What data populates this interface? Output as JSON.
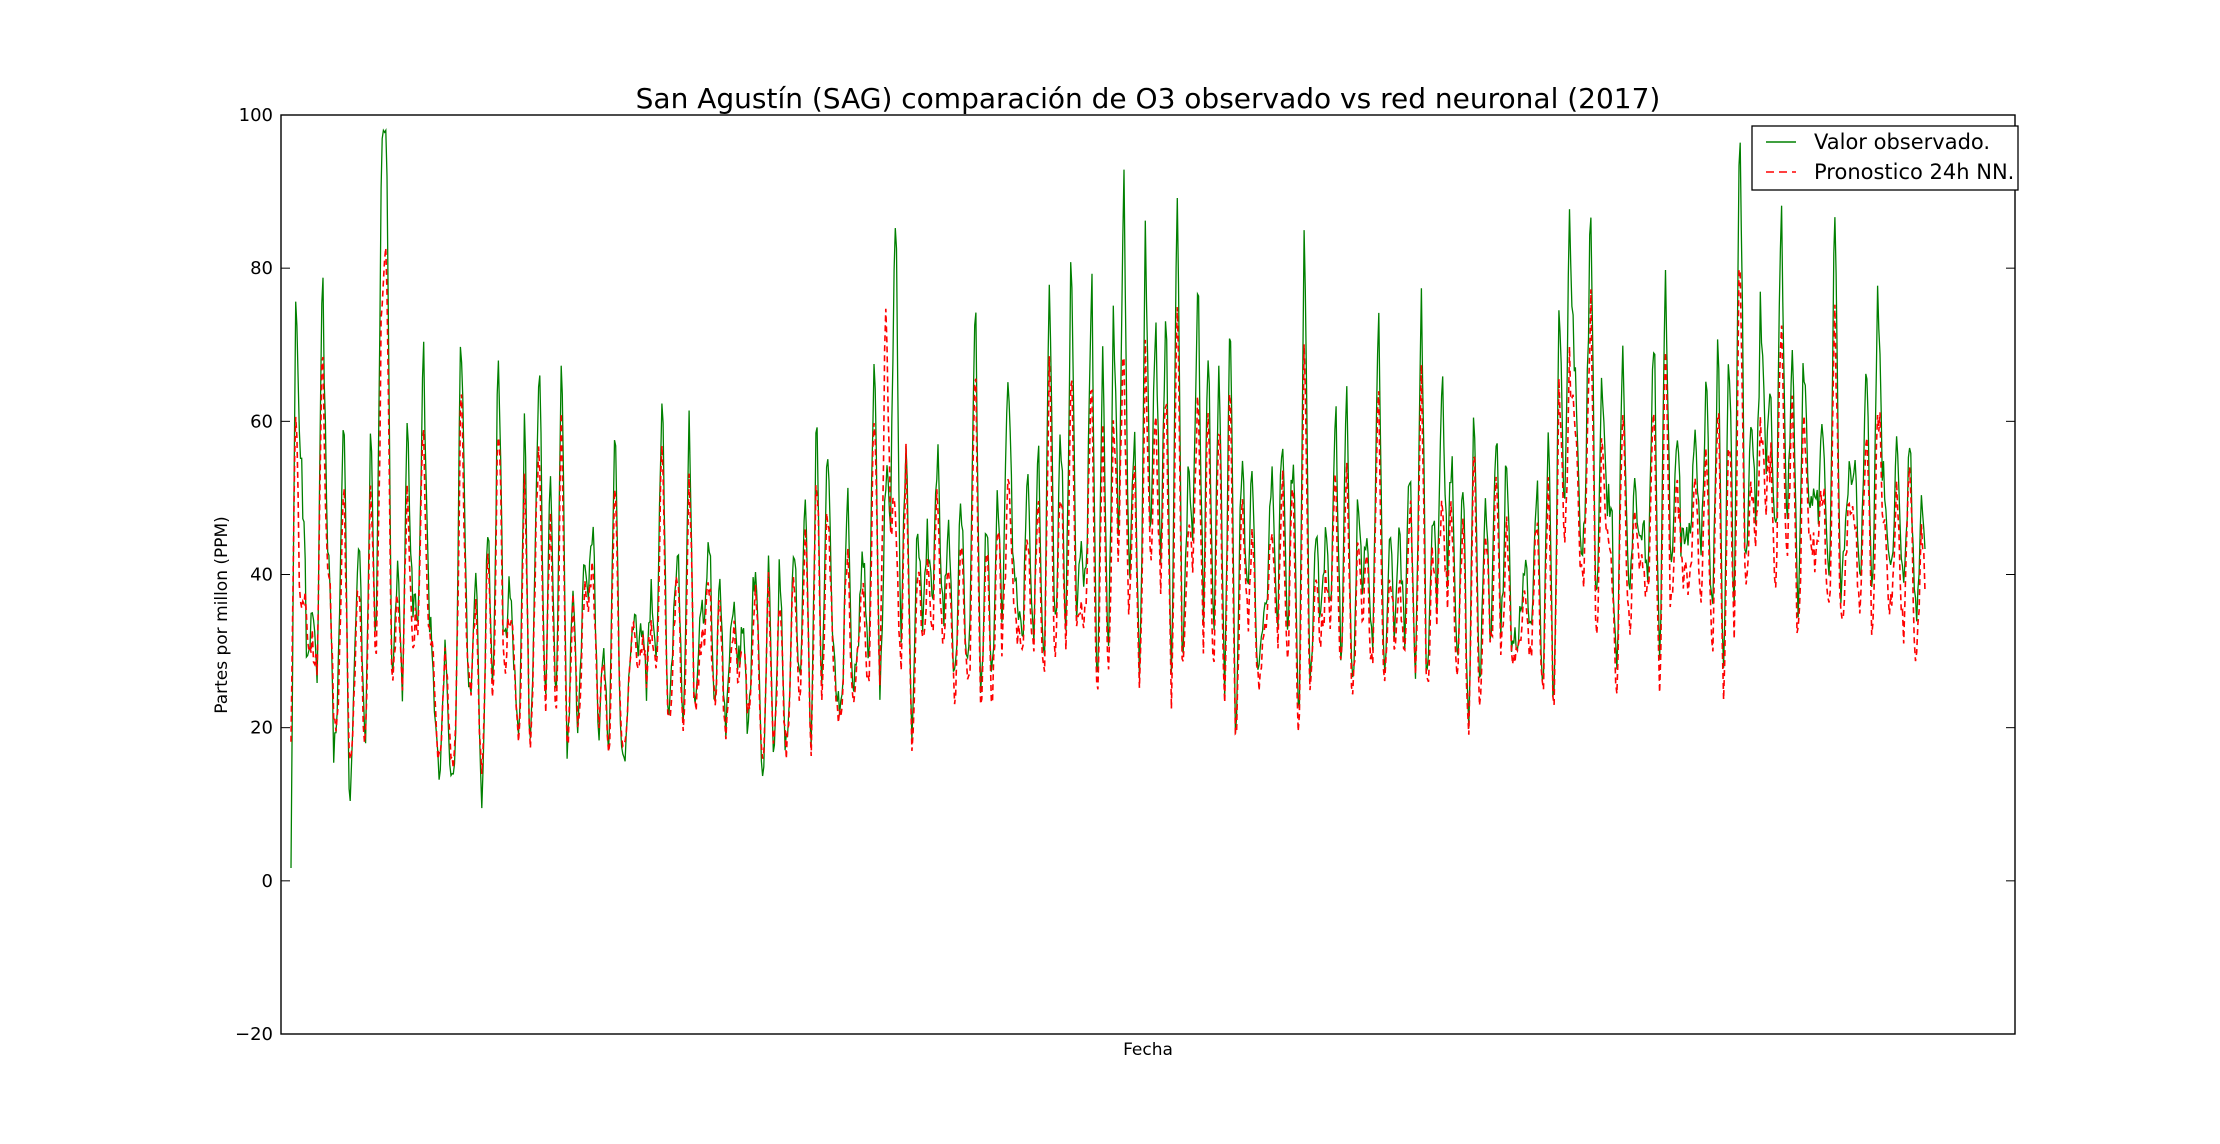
{
  "chart_data": {
    "type": "line",
    "title": "San Agustín (SAG) comparación de O3 observado vs red neuronal (2017)",
    "xlabel": "Fecha",
    "ylabel": "Partes por millon (PPM)",
    "ylim": [
      -20,
      100
    ],
    "yticks": [
      -20,
      0,
      20,
      40,
      60,
      80,
      100
    ],
    "ytick_labels": [
      "−20",
      "0",
      "20",
      "40",
      "60",
      "80",
      "100"
    ],
    "x_ticks_shown": false,
    "grid": false,
    "legend_position": "top-right",
    "n_points": 1380,
    "series": [
      {
        "name": "Valor observado.",
        "color": "#008000",
        "style": "solid",
        "generated": true,
        "base": [
          3,
          76,
          60,
          20,
          45,
          18,
          90,
          42,
          15,
          35,
          55,
          12,
          28,
          40,
          22,
          50,
          30,
          98,
          88,
          30,
          44,
          18,
          70,
          35,
          27,
          80,
          33,
          20,
          18,
          28,
          12,
          22,
          65,
          41,
          25,
          35,
          12,
          40,
          28,
          70,
          30,
          45,
          23,
          25,
          52,
          20,
          40,
          65,
          24,
          48,
          28,
          60,
          22,
          35,
          18,
          45,
          30,
          56,
          15,
          30,
          22,
          52,
          25,
          18,
          24,
          40,
          35,
          20,
          45,
          30,
          56,
          28,
          30,
          38,
          25,
          55,
          20,
          40,
          28,
          50,
          22,
          35,
          25,
          28,
          38,
          30,
          20,
          40,
          30,
          15,
          36,
          20,
          35,
          22,
          25,
          40,
          30,
          45,
          22,
          54,
          25,
          60,
          28,
          30,
          22,
          48,
          30,
          26,
          45,
          35,
          61,
          28,
          54,
          40,
          97,
          30,
          52,
          22,
          45,
          28,
          56,
          30,
          55,
          40,
          38,
          30,
          45,
          32,
          38,
          68,
          30,
          42,
          28,
          50,
          30,
          74,
          36,
          45,
          25,
          60,
          28,
          56,
          30,
          72,
          40,
          50,
          35,
          86,
          30,
          52,
          35,
          76,
          28,
          60,
          30,
          78,
          35,
          98,
          40,
          50,
          30,
          86,
          35,
          85,
          40,
          68,
          30,
          87,
          28,
          60,
          36,
          88,
          30,
          70,
          35,
          60,
          30,
          68,
          22,
          48,
          40,
          56,
          25,
          40,
          30,
          65,
          28,
          62,
          35,
          50,
          25,
          80,
          30,
          45,
          28,
          55,
          30,
          60,
          35,
          56,
          25,
          55,
          30,
          50,
          35,
          65,
          30,
          48,
          25,
          56,
          30,
          50,
          35,
          71,
          28,
          52,
          30,
          78,
          35,
          56,
          30,
          48,
          25,
          55,
          30,
          45,
          35,
          60,
          30,
          62,
          25,
          40,
          30,
          45,
          35,
          47,
          30,
          50,
          25,
          76,
          40,
          98,
          60,
          45,
          58,
          80,
          35,
          72,
          40,
          52,
          30,
          62,
          45,
          50,
          38,
          55,
          40,
          66,
          35,
          72,
          45,
          60,
          38,
          55,
          40,
          62,
          45,
          58,
          40,
          62,
          35,
          60,
          40,
          98,
          45,
          60,
          40,
          86,
          45,
          72,
          40,
          88,
          50,
          60,
          42,
          65,
          45,
          62,
          40,
          58,
          45,
          80,
          40,
          55,
          42,
          58,
          45,
          60,
          40,
          79,
          45,
          55,
          40,
          52,
          45,
          48,
          40,
          47,
          38
        ],
        "scale": [
          5,
          10,
          10,
          8,
          10,
          8,
          12,
          10,
          5,
          8,
          8,
          4,
          6,
          8,
          6,
          10,
          6,
          10,
          10,
          6,
          8,
          5,
          10,
          8,
          6,
          10,
          8,
          6,
          5,
          6,
          3,
          6,
          10,
          8,
          6,
          8,
          3,
          8,
          6,
          10,
          6,
          8,
          6,
          6,
          10,
          6,
          8,
          10,
          6,
          8,
          6,
          10,
          6,
          8,
          5,
          8,
          6,
          10,
          4,
          6,
          6,
          10,
          6,
          4,
          6,
          8,
          8,
          5,
          8,
          6,
          10,
          6,
          6,
          8,
          6,
          10,
          5,
          8,
          6,
          10,
          6,
          8,
          6,
          6,
          8,
          6,
          5,
          8,
          6,
          4,
          8,
          5,
          8,
          6,
          6,
          8,
          6,
          8,
          6,
          10,
          6,
          10,
          6,
          6,
          6,
          8,
          6,
          6,
          8,
          8,
          10,
          6,
          10,
          8,
          10,
          6,
          10,
          6,
          8,
          6,
          10,
          6,
          10,
          8,
          8,
          6,
          8,
          8,
          8,
          10,
          6,
          8,
          6,
          10,
          6,
          10,
          8,
          8,
          6,
          10,
          6,
          10,
          6,
          10,
          8,
          10,
          8,
          10,
          6,
          10,
          8,
          10,
          6,
          10,
          6,
          10,
          8,
          10,
          8,
          10,
          6,
          10,
          8,
          10,
          8,
          10,
          6,
          10,
          6,
          10,
          8,
          10,
          6,
          10,
          8,
          10,
          6,
          10,
          6,
          10,
          8,
          10,
          6,
          8,
          6,
          10,
          6,
          10,
          8,
          10,
          6,
          10,
          6,
          8,
          6,
          10,
          6,
          10,
          8,
          10,
          6,
          10,
          6,
          10,
          8,
          10,
          6,
          8,
          6,
          10,
          6,
          10,
          8,
          10,
          6,
          10,
          6,
          10,
          8,
          10,
          6,
          8,
          6,
          10,
          6,
          8,
          8,
          10,
          6,
          10,
          6,
          8,
          6,
          8,
          8,
          8,
          6,
          10,
          6,
          10,
          8,
          10,
          10,
          8,
          10,
          10,
          6,
          10,
          8,
          10,
          6,
          10,
          8,
          10,
          8,
          10,
          8,
          10,
          8,
          10,
          10,
          10,
          8,
          10,
          8,
          10,
          10,
          10,
          8,
          10,
          8,
          10,
          8,
          10,
          8,
          10,
          10,
          10,
          8,
          10,
          10,
          10,
          8,
          10,
          10,
          10,
          8,
          10,
          10,
          10,
          8,
          10,
          8,
          10,
          10,
          10,
          8,
          10,
          8,
          10,
          10,
          10,
          8,
          10,
          8,
          10,
          8,
          10,
          8,
          10,
          8
        ]
      },
      {
        "name": "Pronostico 24h NN.",
        "color": "#ff0000",
        "style": "dashed",
        "generated": true,
        "base": [
          18,
          60,
          40,
          25,
          40,
          22,
          78,
          38,
          20,
          30,
          45,
          18,
          25,
          35,
          22,
          45,
          28,
          78,
          72,
          30,
          40,
          20,
          60,
          30,
          28,
          70,
          30,
          22,
          20,
          26,
          16,
          22,
          55,
          38,
          26,
          30,
          16,
          35,
          26,
          60,
          28,
          40,
          24,
          24,
          45,
          22,
          36,
          55,
          24,
          42,
          26,
          52,
          22,
          32,
          20,
          40,
          28,
          50,
          18,
          28,
          22,
          45,
          24,
          20,
          24,
          36,
          32,
          22,
          40,
          28,
          50,
          26,
          28,
          34,
          24,
          48,
          22,
          36,
          26,
          44,
          22,
          32,
          24,
          26,
          34,
          28,
          22,
          36,
          28,
          18,
          32,
          22,
          32,
          22,
          24,
          36,
          28,
          40,
          22,
          48,
          24,
          52,
          26,
          28,
          22,
          42,
          28,
          25,
          40,
          32,
          55,
          28,
          80,
          38,
          55,
          28,
          48,
          22,
          40,
          26,
          50,
          28,
          50,
          36,
          35,
          28,
          40,
          30,
          35,
          58,
          28,
          38,
          26,
          45,
          28,
          60,
          32,
          40,
          24,
          52,
          26,
          50,
          28,
          60,
          36,
          45,
          32,
          70,
          28,
          46,
          32,
          64,
          26,
          52,
          28,
          64,
          32,
          77,
          36,
          45,
          28,
          70,
          32,
          70,
          36,
          58,
          28,
          72,
          26,
          52,
          32,
          72,
          28,
          60,
          32,
          52,
          28,
          58,
          22,
          42,
          36,
          48,
          24,
          36,
          28,
          56,
          26,
          54,
          32,
          45,
          24,
          64,
          28,
          40,
          26,
          48,
          28,
          52,
          32,
          48,
          24,
          48,
          28,
          45,
          32,
          56,
          28,
          42,
          24,
          48,
          28,
          45,
          32,
          60,
          26,
          46,
          28,
          62,
          32,
          48,
          28,
          42,
          24,
          48,
          28,
          40,
          32,
          52,
          28,
          54,
          24,
          36,
          28,
          40,
          32,
          42,
          28,
          44,
          24,
          64,
          36,
          78,
          52,
          42,
          52,
          68,
          32,
          62,
          36,
          46,
          28,
          54,
          40,
          45,
          35,
          50,
          36,
          58,
          32,
          62,
          40,
          52,
          35,
          50,
          36,
          55,
          40,
          50,
          36,
          55,
          32,
          52,
          36,
          80,
          40,
          52,
          36,
          70,
          40,
          62,
          36,
          72,
          45,
          52,
          38,
          56,
          40,
          54,
          36,
          50,
          40,
          66,
          36,
          48,
          38,
          50,
          40,
          52,
          36,
          64,
          40,
          48,
          36,
          46,
          40,
          44,
          36,
          42,
          34
        ],
        "scale": [
          6,
          10,
          10,
          8,
          8,
          6,
          10,
          8,
          6,
          8,
          8,
          5,
          6,
          8,
          6,
          8,
          6,
          10,
          10,
          6,
          8,
          5,
          10,
          8,
          6,
          10,
          8,
          6,
          5,
          6,
          4,
          6,
          10,
          8,
          6,
          8,
          4,
          8,
          6,
          10,
          6,
          8,
          6,
          6,
          8,
          6,
          8,
          10,
          6,
          8,
          6,
          10,
          6,
          8,
          5,
          8,
          6,
          10,
          4,
          6,
          6,
          10,
          6,
          4,
          6,
          8,
          8,
          5,
          8,
          6,
          10,
          6,
          6,
          8,
          6,
          10,
          5,
          8,
          6,
          8,
          6,
          8,
          6,
          6,
          8,
          6,
          5,
          8,
          6,
          4,
          8,
          5,
          8,
          6,
          6,
          8,
          6,
          8,
          6,
          10,
          6,
          10,
          6,
          6,
          6,
          8,
          6,
          6,
          8,
          8,
          10,
          6,
          10,
          8,
          10,
          6,
          10,
          6,
          8,
          6,
          10,
          6,
          10,
          8,
          8,
          6,
          8,
          8,
          8,
          10,
          6,
          8,
          6,
          10,
          6,
          10,
          8,
          8,
          6,
          10,
          6,
          10,
          6,
          10,
          8,
          10,
          8,
          10,
          6,
          10,
          8,
          10,
          6,
          10,
          6,
          10,
          8,
          10,
          8,
          10,
          6,
          10,
          8,
          10,
          8,
          10,
          6,
          10,
          6,
          10,
          8,
          10,
          6,
          10,
          8,
          10,
          6,
          10,
          6,
          10,
          8,
          10,
          6,
          8,
          6,
          10,
          6,
          10,
          8,
          10,
          6,
          10,
          6,
          8,
          6,
          10,
          6,
          10,
          8,
          10,
          6,
          10,
          6,
          10,
          8,
          10,
          6,
          8,
          6,
          10,
          6,
          10,
          8,
          10,
          6,
          10,
          6,
          10,
          8,
          10,
          6,
          8,
          6,
          10,
          6,
          8,
          8,
          10,
          6,
          10,
          6,
          8,
          6,
          8,
          8,
          8,
          6,
          10,
          6,
          10,
          8,
          10,
          10,
          8,
          10,
          10,
          6,
          10,
          8,
          10,
          6,
          10,
          8,
          10,
          8,
          10,
          8,
          10,
          8,
          10,
          10,
          10,
          8,
          10,
          8,
          10,
          10,
          10,
          8,
          10,
          8,
          10,
          8,
          10,
          8,
          10,
          10,
          10,
          8,
          10,
          10,
          10,
          8,
          10,
          10,
          10,
          8,
          10,
          10,
          10,
          8,
          10,
          8,
          10,
          10,
          10,
          8,
          10,
          8,
          10,
          10,
          10,
          8,
          10,
          8,
          10,
          8,
          10,
          8,
          10,
          8
        ]
      }
    ]
  }
}
